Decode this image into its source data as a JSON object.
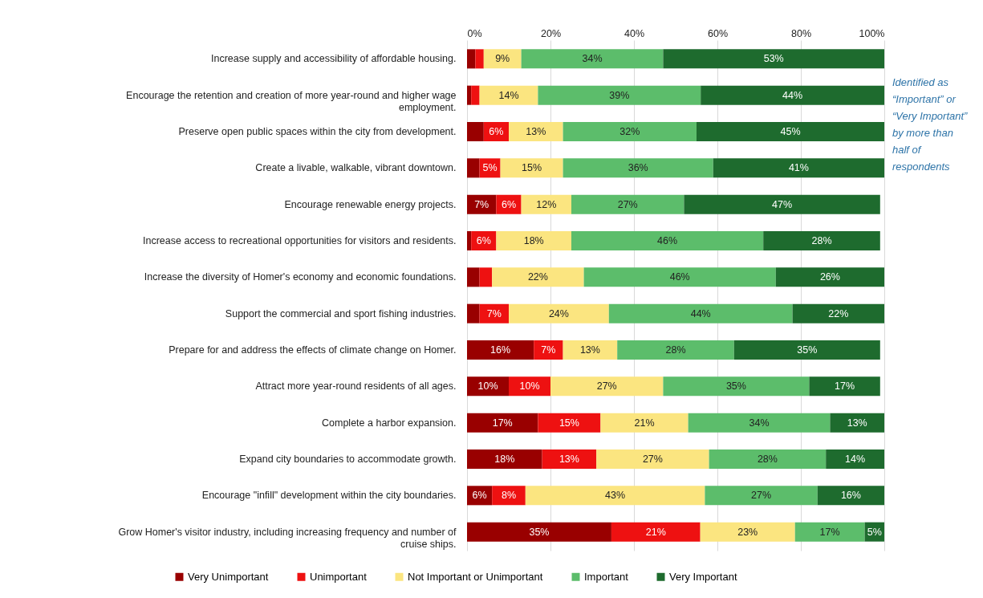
{
  "chart_data": {
    "type": "bar",
    "orientation": "horizontal",
    "stacked": true,
    "categories": [
      "Increase supply and accessibility of affordable housing.",
      "Encourage the retention and creation of more year-round and higher wage employment.",
      "Preserve open public spaces within the city from development.",
      "Create a livable, walkable, vibrant downtown.",
      "Encourage renewable energy projects.",
      "Increase access to recreational opportunities for visitors and residents.",
      "Increase the diversity of Homer's economy and economic foundations.",
      "Support the commercial and sport fishing industries.",
      "Prepare for and address the effects of climate change on Homer.",
      "Attract more year-round residents of all ages.",
      "Complete a harbor expansion.",
      "Expand city boundaries to accommodate growth.",
      "Encourage \"infill\" development within the city boundaries.",
      "Grow Homer's visitor industry, including increasing frequency and number of cruise ships."
    ],
    "series": [
      {
        "name": "Very Unimportant",
        "color": "#990000",
        "values": [
          2,
          1,
          4,
          3,
          7,
          1,
          3,
          3,
          16,
          10,
          17,
          18,
          6,
          34.6
        ],
        "value_labels": [
          null,
          null,
          null,
          null,
          "7%",
          null,
          null,
          null,
          "16%",
          "10%",
          "17%",
          "18%",
          "6%",
          "35%"
        ]
      },
      {
        "name": "Unimportant",
        "color": "#ee1111",
        "values": [
          2,
          2,
          6,
          5,
          6,
          6,
          3,
          7,
          7,
          10,
          15,
          13,
          8,
          21.3
        ],
        "value_labels": [
          null,
          null,
          "6%",
          "5%",
          "6%",
          "6%",
          null,
          "7%",
          "7%",
          "10%",
          "15%",
          "13%",
          "8%",
          "21%"
        ]
      },
      {
        "name": "Not Important or Unimportant",
        "color": "#fbe580",
        "values": [
          9,
          14,
          13,
          15,
          12,
          18,
          22,
          24,
          13,
          27,
          21,
          27,
          43,
          22.7
        ],
        "value_labels": [
          "9%",
          "14%",
          "13%",
          "15%",
          "12%",
          "18%",
          "22%",
          "24%",
          "13%",
          "27%",
          "21%",
          "27%",
          "43%",
          "23%"
        ]
      },
      {
        "name": "Important",
        "color": "#5cbd6b",
        "values": [
          34,
          39,
          32,
          36,
          27,
          46,
          46,
          44,
          28,
          35,
          34,
          28,
          27,
          16.7
        ],
        "value_labels": [
          "34%",
          "39%",
          "32%",
          "36%",
          "27%",
          "46%",
          "46%",
          "44%",
          "28%",
          "35%",
          "34%",
          "28%",
          "27%",
          "17%"
        ]
      },
      {
        "name": "Very Important",
        "color": "#1e6b2e",
        "values": [
          53,
          44,
          45,
          41,
          47,
          28,
          26,
          22,
          35,
          17,
          13,
          14,
          16,
          4.7
        ],
        "value_labels": [
          "53%",
          "44%",
          "45%",
          "41%",
          "47%",
          "28%",
          "26%",
          "22%",
          "35%",
          "17%",
          "13%",
          "14%",
          "16%",
          "5%"
        ]
      }
    ],
    "xlim": [
      0,
      100
    ],
    "xticks": [
      {
        "value": 0,
        "label": "0%"
      },
      {
        "value": 20,
        "label": "20%"
      },
      {
        "value": 40,
        "label": "40%"
      },
      {
        "value": 60,
        "label": "60%"
      },
      {
        "value": 80,
        "label": "80%"
      },
      {
        "value": 100,
        "label": "100%"
      }
    ],
    "grid": "x",
    "legend": "bottom",
    "annotations": [
      "Identified as “Important” or “Very Important” by more than half of respondents"
    ]
  }
}
